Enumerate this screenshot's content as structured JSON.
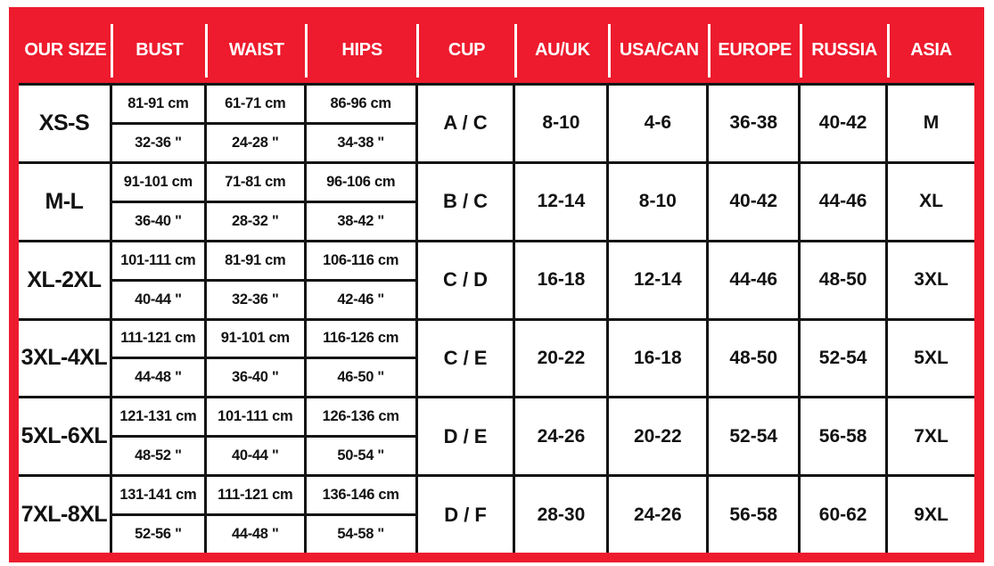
{
  "colors": {
    "header_red": "#ed1b2d",
    "grid_black": "#141414",
    "header_text": "#ffffff",
    "body_text": "#121212"
  },
  "chart_data": {
    "type": "table",
    "headers": [
      "OUR SIZE",
      "BUST",
      "WAIST",
      "HIPS",
      "CUP",
      "AU/UK",
      "USA/CAN",
      "EUROPE",
      "RUSSIA",
      "ASIA"
    ],
    "rows": [
      {
        "size": "XS-S",
        "bust_cm": "81-91 cm",
        "bust_in": "32-36 \"",
        "waist_cm": "61-71 cm",
        "waist_in": "24-28 \"",
        "hips_cm": "86-96 cm",
        "hips_in": "34-38 \"",
        "cup": "A / C",
        "au_uk": "8-10",
        "usa_can": "4-6",
        "europe": "36-38",
        "russia": "40-42",
        "asia": "M"
      },
      {
        "size": "M-L",
        "bust_cm": "91-101 cm",
        "bust_in": "36-40 \"",
        "waist_cm": "71-81 cm",
        "waist_in": "28-32 \"",
        "hips_cm": "96-106 cm",
        "hips_in": "38-42 \"",
        "cup": "B / C",
        "au_uk": "12-14",
        "usa_can": "8-10",
        "europe": "40-42",
        "russia": "44-46",
        "asia": "XL"
      },
      {
        "size": "XL-2XL",
        "bust_cm": "101-111 cm",
        "bust_in": "40-44 \"",
        "waist_cm": "81-91 cm",
        "waist_in": "32-36 \"",
        "hips_cm": "106-116 cm",
        "hips_in": "42-46 \"",
        "cup": "C / D",
        "au_uk": "16-18",
        "usa_can": "12-14",
        "europe": "44-46",
        "russia": "48-50",
        "asia": "3XL"
      },
      {
        "size": "3XL-4XL",
        "bust_cm": "111-121 cm",
        "bust_in": "44-48 \"",
        "waist_cm": "91-101 cm",
        "waist_in": "36-40 \"",
        "hips_cm": "116-126 cm",
        "hips_in": "46-50 \"",
        "cup": "C / E",
        "au_uk": "20-22",
        "usa_can": "16-18",
        "europe": "48-50",
        "russia": "52-54",
        "asia": "5XL"
      },
      {
        "size": "5XL-6XL",
        "bust_cm": "121-131 cm",
        "bust_in": "48-52 \"",
        "waist_cm": "101-111 cm",
        "waist_in": "40-44 \"",
        "hips_cm": "126-136 cm",
        "hips_in": "50-54 \"",
        "cup": "D / E",
        "au_uk": "24-26",
        "usa_can": "20-22",
        "europe": "52-54",
        "russia": "56-58",
        "asia": "7XL"
      },
      {
        "size": "7XL-8XL",
        "bust_cm": "131-141 cm",
        "bust_in": "52-56 \"",
        "waist_cm": "111-121 cm",
        "waist_in": "44-48 \"",
        "hips_cm": "136-146 cm",
        "hips_in": "54-58 \"",
        "cup": "D / F",
        "au_uk": "28-30",
        "usa_can": "24-26",
        "europe": "56-58",
        "russia": "60-62",
        "asia": "9XL"
      }
    ]
  }
}
